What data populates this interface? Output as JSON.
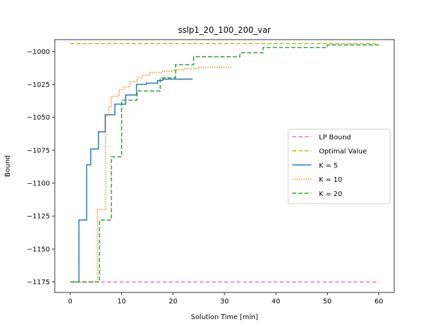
{
  "chart_data": {
    "type": "line",
    "title": "sslp1_20_100_200_var",
    "xlabel": "Solution Time [min]",
    "ylabel": "Bound",
    "xlim": [
      -3,
      63
    ],
    "ylim": [
      -1183,
      -991
    ],
    "xticks": [
      0,
      10,
      20,
      30,
      40,
      50,
      60
    ],
    "yticks": [
      -1000,
      -1025,
      -1050,
      -1075,
      -1100,
      -1125,
      -1150,
      -1175
    ],
    "x_tick_labels": [
      "0",
      "10",
      "20",
      "30",
      "40",
      "50",
      "60"
    ],
    "y_tick_labels": [
      "−1000",
      "−1025",
      "−1050",
      "−1075",
      "−1100",
      "−1125",
      "−1150",
      "−1175"
    ],
    "legend_position": "center-right",
    "series": [
      {
        "name": "LP Bound",
        "color": "#e377c2",
        "style": "dashed",
        "step": false,
        "points": [
          [
            0,
            -1175
          ],
          [
            60,
            -1175
          ]
        ]
      },
      {
        "name": "Optimal Value",
        "color": "#bcbd22",
        "style": "dashed",
        "step": false,
        "points": [
          [
            0,
            -994
          ],
          [
            60,
            -994
          ]
        ]
      },
      {
        "name": "K = 5",
        "color": "#1f77b4",
        "style": "solid",
        "step": true,
        "points": [
          [
            0,
            -1175
          ],
          [
            1.7,
            -1175
          ],
          [
            1.7,
            -1128
          ],
          [
            3.2,
            -1128
          ],
          [
            3.2,
            -1086
          ],
          [
            4,
            -1086
          ],
          [
            4,
            -1074
          ],
          [
            5.5,
            -1074
          ],
          [
            5.5,
            -1061
          ],
          [
            6.8,
            -1061
          ],
          [
            6.8,
            -1048
          ],
          [
            8.7,
            -1048
          ],
          [
            8.7,
            -1040
          ],
          [
            10.8,
            -1040
          ],
          [
            10.8,
            -1033
          ],
          [
            12.9,
            -1033
          ],
          [
            12.9,
            -1025
          ],
          [
            14.8,
            -1025
          ],
          [
            14.8,
            -1024
          ],
          [
            17,
            -1024
          ],
          [
            17,
            -1022
          ],
          [
            18,
            -1022
          ],
          [
            18,
            -1021
          ],
          [
            23.8,
            -1021
          ]
        ]
      },
      {
        "name": "K = 10",
        "color": "#ff7f0e",
        "style": "dotted",
        "step": true,
        "points": [
          [
            0,
            -1175
          ],
          [
            5.3,
            -1175
          ],
          [
            5.3,
            -1120
          ],
          [
            6.9,
            -1120
          ],
          [
            6.9,
            -1049
          ],
          [
            7.5,
            -1049
          ],
          [
            7.5,
            -1042
          ],
          [
            8,
            -1042
          ],
          [
            8,
            -1034
          ],
          [
            9.5,
            -1034
          ],
          [
            9.5,
            -1029
          ],
          [
            10.4,
            -1029
          ],
          [
            10.4,
            -1027
          ],
          [
            11.6,
            -1027
          ],
          [
            11.6,
            -1023
          ],
          [
            13,
            -1023
          ],
          [
            13,
            -1020
          ],
          [
            14,
            -1020
          ],
          [
            14,
            -1018
          ],
          [
            15.5,
            -1018
          ],
          [
            15.5,
            -1016
          ],
          [
            18,
            -1016
          ],
          [
            18,
            -1015
          ],
          [
            20,
            -1015
          ],
          [
            20,
            -1014
          ],
          [
            22,
            -1014
          ],
          [
            22,
            -1013
          ],
          [
            25,
            -1013
          ],
          [
            25,
            -1012
          ],
          [
            31.5,
            -1012
          ]
        ]
      },
      {
        "name": "K = 20",
        "color": "#2ca02c",
        "style": "dashed",
        "step": true,
        "points": [
          [
            0,
            -1175
          ],
          [
            5.7,
            -1175
          ],
          [
            5.7,
            -1128
          ],
          [
            8,
            -1128
          ],
          [
            8,
            -1080
          ],
          [
            10,
            -1080
          ],
          [
            10,
            -1037
          ],
          [
            13,
            -1037
          ],
          [
            13,
            -1030
          ],
          [
            17.5,
            -1030
          ],
          [
            17.5,
            -1020
          ],
          [
            20.5,
            -1020
          ],
          [
            20.5,
            -1010
          ],
          [
            24,
            -1010
          ],
          [
            24,
            -1004
          ],
          [
            33,
            -1004
          ],
          [
            33,
            -1001
          ],
          [
            37.5,
            -1001
          ],
          [
            37.5,
            -997
          ],
          [
            50,
            -997
          ],
          [
            50,
            -995
          ],
          [
            60,
            -995
          ]
        ]
      }
    ]
  }
}
